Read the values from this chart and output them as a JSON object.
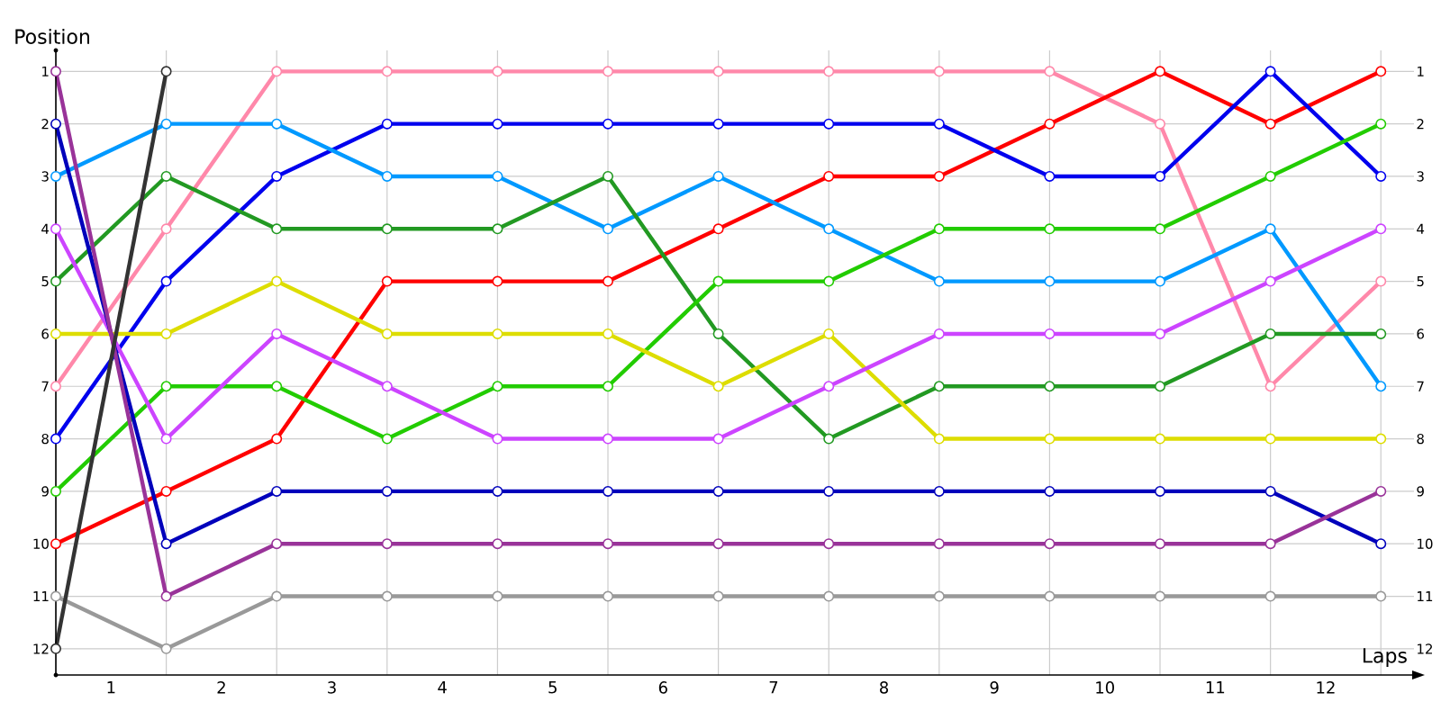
{
  "chart_data": {
    "type": "line",
    "xlabel": "Laps",
    "ylabel": "Position",
    "x": [
      0,
      1,
      2,
      3,
      4,
      5,
      6,
      7,
      8,
      9,
      10,
      11,
      12
    ],
    "xlim": [
      0,
      12.3
    ],
    "xticks": [
      {
        "value": 0,
        "label": null
      },
      {
        "value": 0.5,
        "label": "1"
      },
      {
        "value": 1,
        "label": null
      },
      {
        "value": 1.5,
        "label": "2"
      },
      {
        "value": 2,
        "label": null
      },
      {
        "value": 2.5,
        "label": "3"
      },
      {
        "value": 3,
        "label": null
      },
      {
        "value": 3.5,
        "label": "4"
      },
      {
        "value": 4,
        "label": null
      },
      {
        "value": 4.5,
        "label": "5"
      },
      {
        "value": 5,
        "label": null
      },
      {
        "value": 5.5,
        "label": "6"
      },
      {
        "value": 6,
        "label": null
      },
      {
        "value": 6.5,
        "label": "7"
      },
      {
        "value": 7,
        "label": null
      },
      {
        "value": 7.5,
        "label": "8"
      },
      {
        "value": 8,
        "label": null
      },
      {
        "value": 8.5,
        "label": "9"
      },
      {
        "value": 9,
        "label": null
      },
      {
        "value": 9.5,
        "label": "10"
      },
      {
        "value": 10,
        "label": null
      },
      {
        "value": 10.5,
        "label": "11"
      },
      {
        "value": 11,
        "label": null
      },
      {
        "value": 11.5,
        "label": "12"
      },
      {
        "value": 12,
        "label": null
      }
    ],
    "ylim": [
      12.5,
      0.6
    ],
    "yticks": [
      1,
      2,
      3,
      4,
      5,
      6,
      7,
      8,
      9,
      10,
      11,
      12
    ],
    "y2lim": [
      12.5,
      0.6
    ],
    "y2ticks": [
      1,
      2,
      3,
      4,
      5,
      6,
      7,
      8,
      9,
      10,
      11,
      12
    ],
    "grid": true,
    "marker": "circle",
    "line_style": "solid",
    "series": [
      {
        "color": "#ff88aa",
        "values": [
          7,
          4,
          1,
          1,
          1,
          1,
          1,
          1,
          1,
          1,
          2,
          7,
          5
        ]
      },
      {
        "color": "#ff0000",
        "values": [
          10,
          9,
          8,
          5,
          5,
          5,
          4,
          3,
          3,
          2,
          1,
          2,
          1
        ]
      },
      {
        "color": "#0000ee",
        "values": [
          8,
          5,
          3,
          2,
          2,
          2,
          2,
          2,
          2,
          3,
          3,
          1,
          3
        ]
      },
      {
        "color": "#0099ff",
        "values": [
          3,
          2,
          2,
          3,
          3,
          4,
          3,
          4,
          5,
          5,
          5,
          4,
          7
        ]
      },
      {
        "color": "#229922",
        "values": [
          5,
          3,
          4,
          4,
          4,
          3,
          6,
          8,
          7,
          7,
          7,
          6,
          6
        ]
      },
      {
        "color": "#22cc00",
        "values": [
          9,
          7,
          7,
          8,
          7,
          7,
          5,
          5,
          4,
          4,
          4,
          3,
          2
        ]
      },
      {
        "color": "#dddd00",
        "values": [
          6,
          6,
          5,
          6,
          6,
          6,
          7,
          6,
          8,
          8,
          8,
          8,
          8
        ]
      },
      {
        "color": "#cc44ff",
        "values": [
          4,
          8,
          6,
          7,
          8,
          8,
          8,
          7,
          6,
          6,
          6,
          5,
          4
        ]
      },
      {
        "color": "#0000bb",
        "values": [
          2,
          10,
          9,
          9,
          9,
          9,
          9,
          9,
          9,
          9,
          9,
          9,
          10
        ]
      },
      {
        "color": "#993399",
        "values": [
          1,
          11,
          10,
          10,
          10,
          10,
          10,
          10,
          10,
          10,
          10,
          10,
          9
        ]
      },
      {
        "color": "#999999",
        "values": [
          11,
          12,
          11,
          11,
          11,
          11,
          11,
          11,
          11,
          11,
          11,
          11,
          11
        ]
      },
      {
        "color": "#333333",
        "values": [
          12,
          1,
          null,
          null,
          null,
          null,
          null,
          null,
          null,
          null,
          null,
          null,
          null
        ]
      }
    ]
  }
}
